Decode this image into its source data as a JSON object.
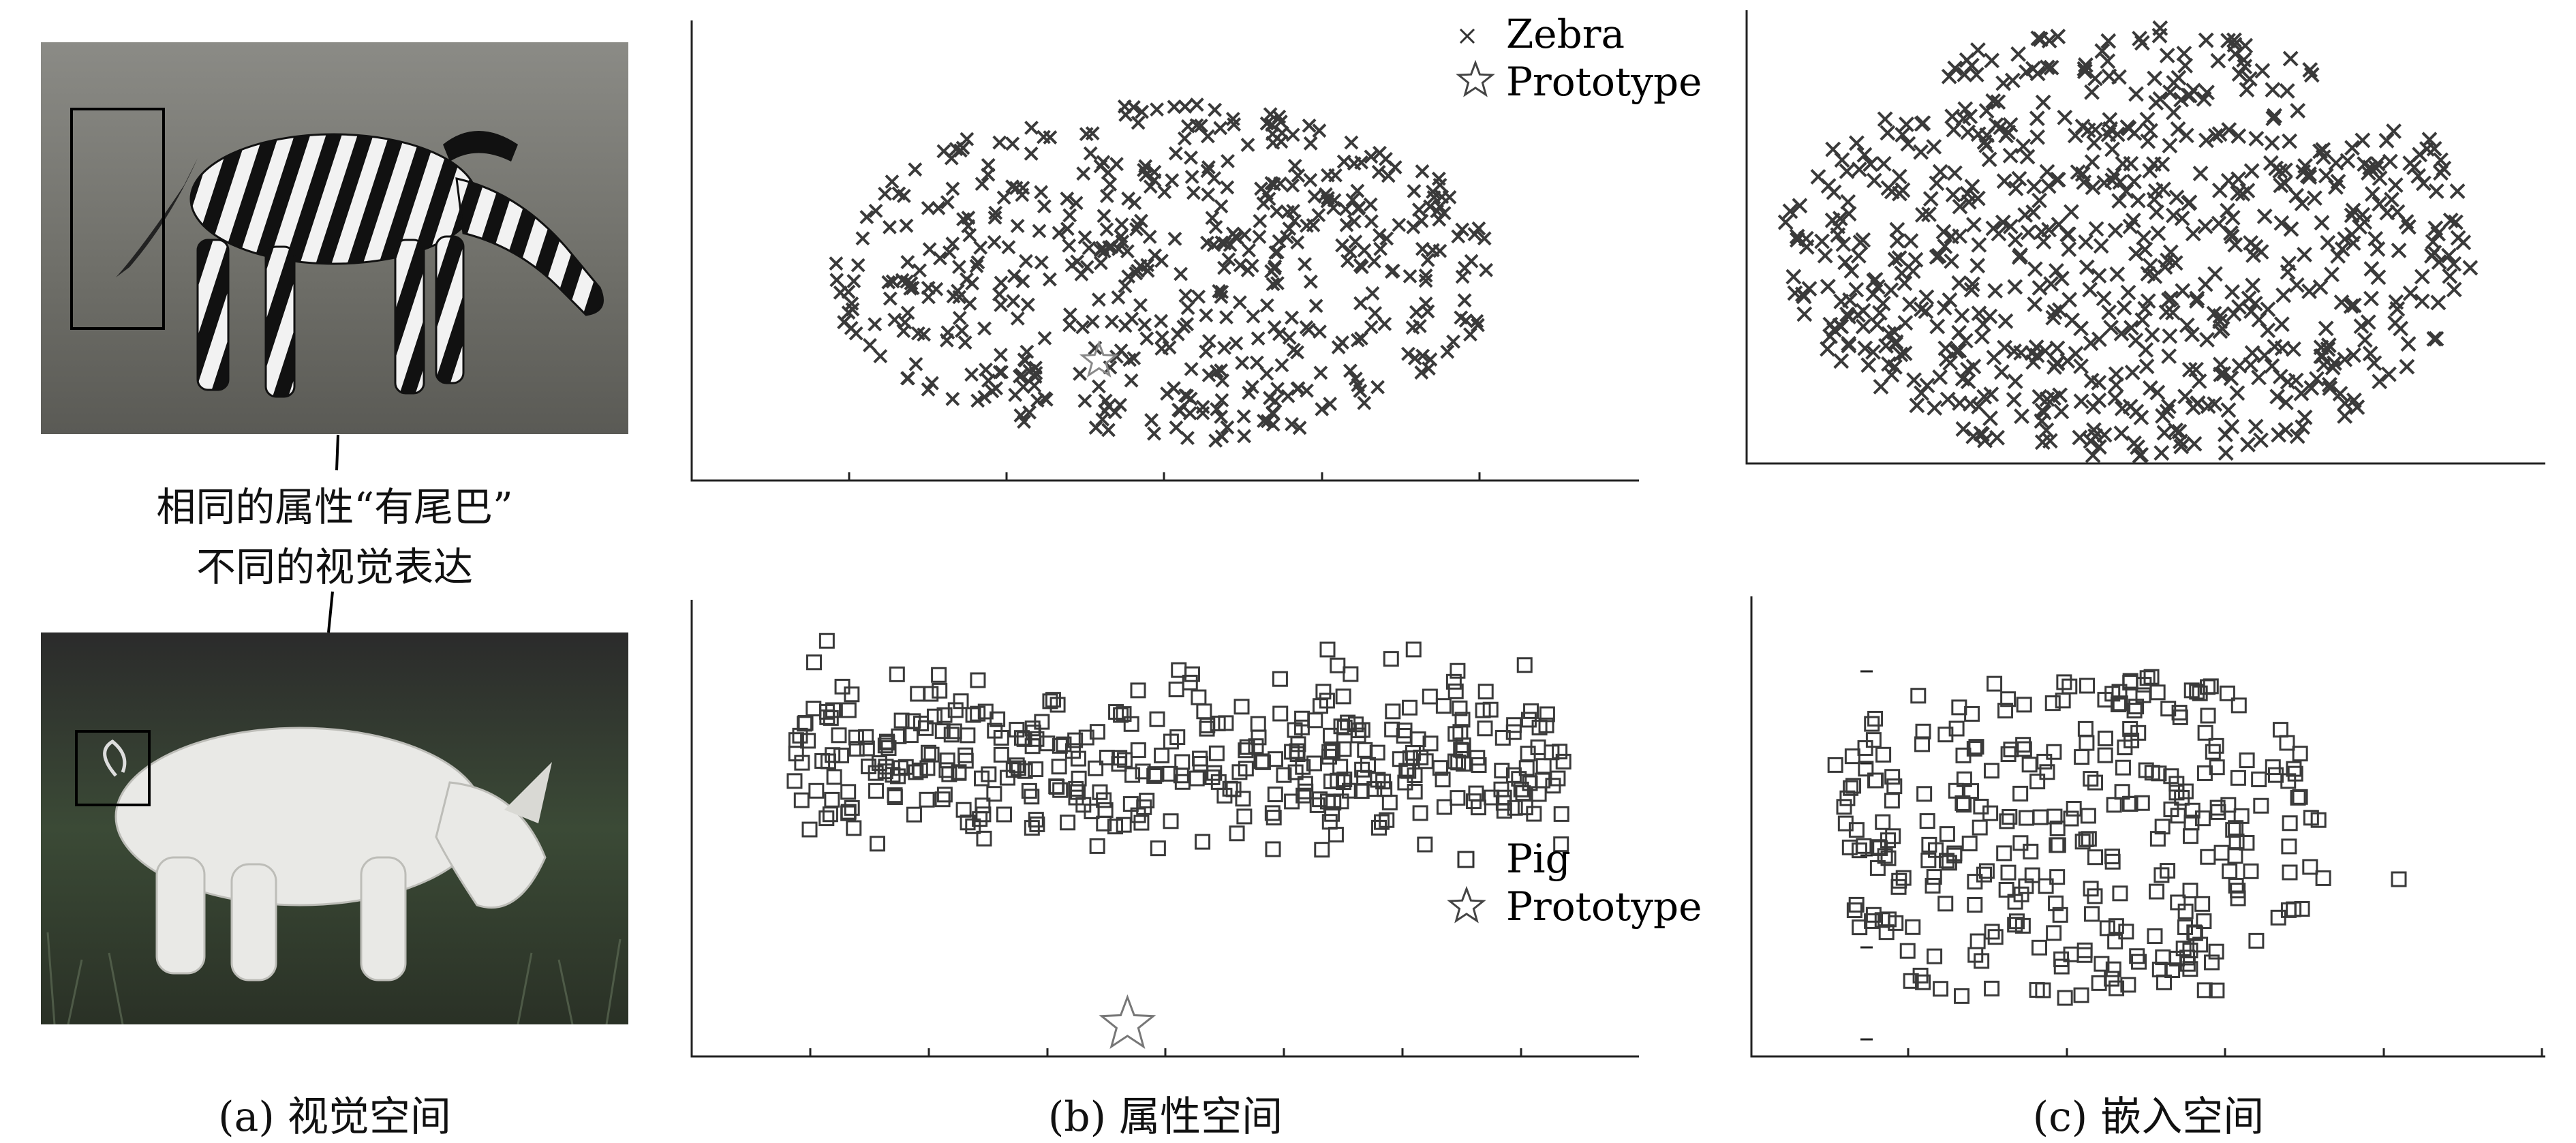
{
  "figure": {
    "captions": {
      "a": "(a) 视觉空间",
      "b": "(b) 属性空间",
      "c": "(c) 嵌入空间"
    },
    "annotation": {
      "line1": "相同的属性“有尾巴”",
      "line2": "不同的视觉表达"
    }
  },
  "colors": {
    "marker": "#3a3a3a",
    "axis": "#222222",
    "photo_bg_zebra": "#7a7a72",
    "photo_bg_pig": "#2e3a2a"
  },
  "chart_data": [
    {
      "id": "attr-zebra",
      "type": "scatter",
      "title": "",
      "xlabel": "",
      "ylabel": "",
      "series": [
        {
          "name": "Zebra",
          "marker": "x",
          "count": 520
        },
        {
          "name": "Prototype",
          "marker": "star",
          "points": [
            [
              0.43,
              0.26
            ]
          ]
        }
      ],
      "legend": "top-right"
    },
    {
      "id": "embed-zebra",
      "type": "scatter",
      "title": "",
      "xlabel": "",
      "ylabel": "",
      "series": [
        {
          "name": "",
          "marker": "x",
          "count": 700
        }
      ]
    },
    {
      "id": "attr-pig",
      "type": "scatter",
      "title": "",
      "xlabel": "",
      "ylabel": "",
      "series": [
        {
          "name": "Pig",
          "marker": "square",
          "count": 380
        },
        {
          "name": "Prototype",
          "marker": "star",
          "points": [
            [
              0.46,
              0.07
            ]
          ]
        }
      ],
      "legend": "bottom-right"
    },
    {
      "id": "embed-pig",
      "type": "scatter",
      "title": "",
      "xlabel": "",
      "ylabel": "",
      "series": [
        {
          "name": "",
          "marker": "square",
          "count": 300
        }
      ]
    }
  ]
}
